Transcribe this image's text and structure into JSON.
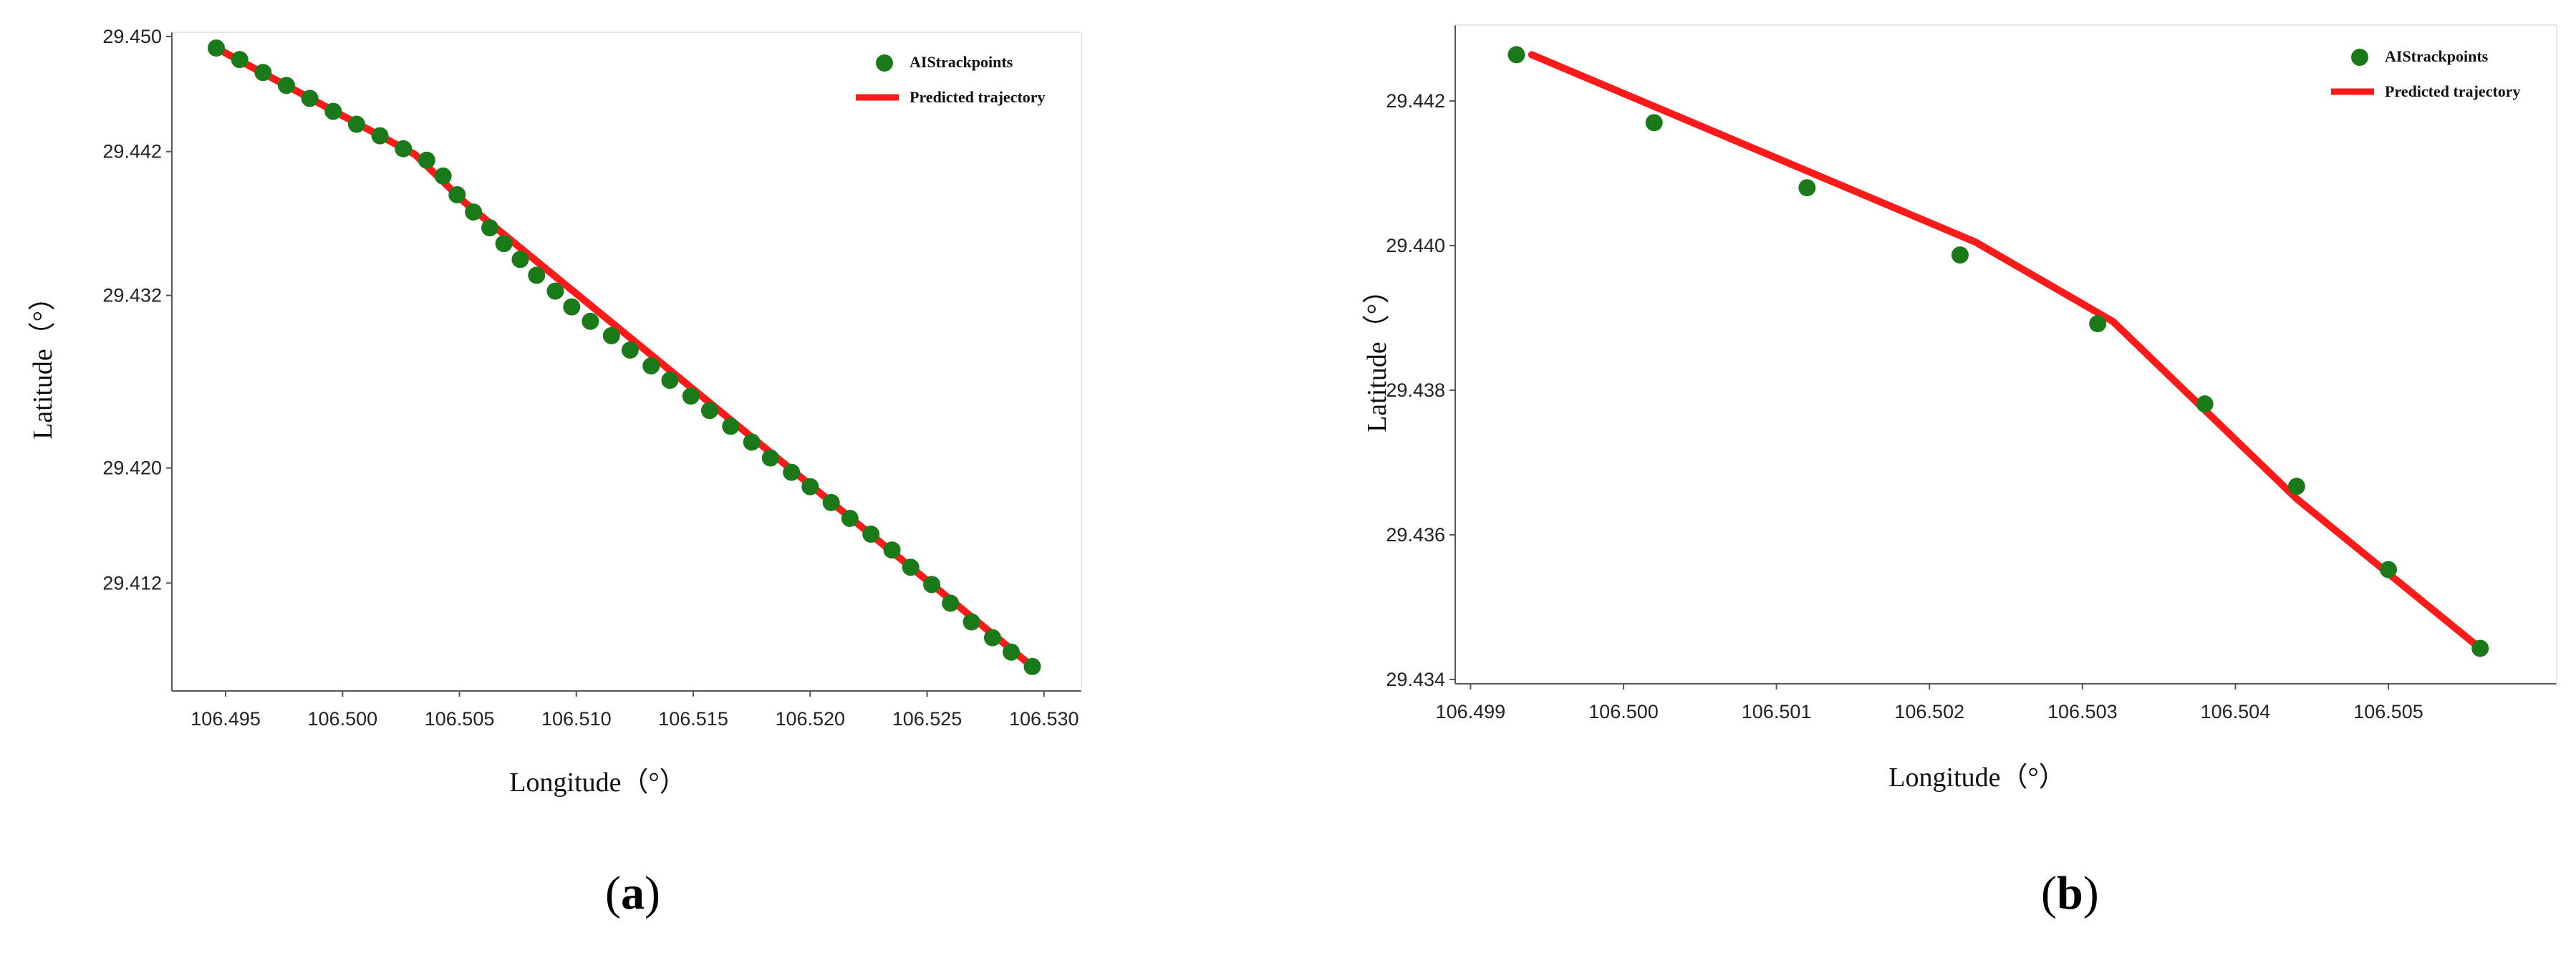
{
  "chart_data": [
    {
      "type": "scatter",
      "caption": "a",
      "xlabel": "Longitude（°）",
      "ylabel": "Latitude（°）",
      "xlim": [
        106.4927,
        106.5316
      ],
      "ylim": [
        29.4045,
        29.4503
      ],
      "xticks": [
        "106.495",
        "106.500",
        "106.505",
        "106.510",
        "106.515",
        "106.520",
        "106.525",
        "106.530"
      ],
      "yticks": [
        "29.450",
        "29.442",
        "29.432",
        "29.420",
        "29.412"
      ],
      "grid": false,
      "legend_position": "top-right",
      "series": [
        {
          "name": "AIStrackpoints",
          "kind": "points",
          "color": "#1a7a1a",
          "x": [
            106.4946,
            106.4956,
            106.4966,
            106.4976,
            106.4986,
            106.4996,
            106.5006,
            106.5016,
            106.5026,
            106.5036,
            106.5043,
            106.5049,
            106.5056,
            106.5063,
            106.5069,
            106.5076,
            106.5083,
            106.5091,
            106.5098,
            106.5106,
            106.5115,
            106.5123,
            106.5132,
            106.514,
            106.5149,
            106.5157,
            106.5166,
            106.5175,
            106.5183,
            106.5192,
            106.52,
            106.5209,
            106.5217,
            106.5226,
            106.5235,
            106.5243,
            106.5252,
            106.526,
            106.5269,
            106.5278,
            106.5286,
            106.5295
          ],
          "y": [
            29.4492,
            29.4484,
            29.4475,
            29.4466,
            29.4457,
            29.4448,
            29.4439,
            29.4431,
            29.4422,
            29.4414,
            29.4403,
            29.439,
            29.4378,
            29.4367,
            29.4356,
            29.4345,
            29.4334,
            29.4323,
            29.4312,
            29.4302,
            29.4292,
            29.4282,
            29.4271,
            29.4261,
            29.425,
            29.424,
            29.4229,
            29.4218,
            29.4207,
            29.4197,
            29.4187,
            29.4176,
            29.4165,
            29.4154,
            29.4143,
            29.4131,
            29.4119,
            29.4106,
            29.4093,
            29.4082,
            29.4072,
            29.4062
          ]
        },
        {
          "name": "Predicted trajectory",
          "kind": "line",
          "color": "#ff1a1a",
          "x": [
            106.4946,
            106.5031,
            106.5052,
            106.5295
          ],
          "y": [
            29.4492,
            29.4418,
            29.4385,
            29.4062
          ]
        }
      ]
    },
    {
      "type": "scatter",
      "caption": "b",
      "xlabel": "Longitude（°）",
      "ylabel": "Latitude（°）",
      "xlim": [
        106.4989,
        106.5061
      ],
      "ylim": [
        29.43394,
        29.44305
      ],
      "xticks": [
        "106.499",
        "106.500",
        "106.501",
        "106.502",
        "106.503",
        "106.504",
        "106.505"
      ],
      "yticks": [
        "29.442",
        "29.440",
        "29.438",
        "29.436",
        "29.434"
      ],
      "grid": false,
      "legend_position": "top-right",
      "series": [
        {
          "name": "AIStrackpoints",
          "kind": "points",
          "color": "#1a7a1a",
          "x": [
            106.4993,
            106.5002,
            106.5012,
            106.5022,
            106.5031,
            106.5038,
            106.5044,
            106.505,
            106.5056
          ],
          "y": [
            29.44264,
            29.4417,
            29.4408,
            29.43987,
            29.43892,
            29.43781,
            29.43667,
            29.43552,
            29.43443
          ]
        },
        {
          "name": "Predicted trajectory",
          "kind": "line",
          "color": "#ff1a1a",
          "x": [
            106.4994,
            106.5023,
            106.5032,
            106.5044,
            106.5056
          ],
          "y": [
            29.44264,
            29.44005,
            29.43895,
            29.4365,
            29.43443
          ]
        }
      ]
    }
  ]
}
